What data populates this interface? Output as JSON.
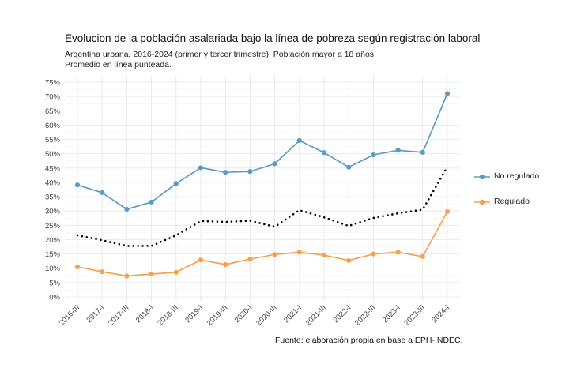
{
  "title": "Evolucion de la población asalariada bajo la línea de pobreza según registración laboral",
  "subtitle": "Argentina urbana, 2016-2024 (primer y tercer trimestre). Población mayor a 18 años.\nPromedio en línea punteada.",
  "caption": "Fuente: elaboración propia en base a EPH-INDEC.",
  "chart_data": {
    "type": "line",
    "title": "Evolucion de la población asalariada bajo la línea de pobreza según registración laboral",
    "subtitle": "Argentina urbana, 2016-2024 (primer y tercer trimestre). Población mayor a 18 años. Promedio en línea punteada.",
    "xlabel": "",
    "ylabel": "",
    "categories": [
      "2016-III",
      "2017-I",
      "2017-III",
      "2018-I",
      "2018-III",
      "2019-I",
      "2019-III",
      "2020-I",
      "2020-III",
      "2021-I",
      "2021-III",
      "2022-I",
      "2022-III",
      "2023-I",
      "2023-III",
      "2024-I"
    ],
    "ylim": [
      0,
      75
    ],
    "yticks": [
      0,
      5,
      10,
      15,
      20,
      25,
      30,
      35,
      40,
      45,
      50,
      55,
      60,
      65,
      70,
      75
    ],
    "ytick_labels": [
      "0%",
      "5%",
      "10%",
      "15%",
      "20%",
      "25%",
      "30%",
      "35%",
      "40%",
      "45%",
      "50%",
      "55%",
      "60%",
      "65%",
      "70%",
      "75%"
    ],
    "grid": true,
    "legend_position": "right",
    "series": [
      {
        "name": "No regulado",
        "color": "#5b9bc4",
        "values": [
          39.1,
          36.4,
          30.6,
          33.1,
          39.6,
          45.1,
          43.5,
          43.8,
          46.5,
          54.6,
          50.4,
          45.3,
          49.6,
          51.2,
          50.5,
          71.0
        ]
      },
      {
        "name": "Regulado",
        "color": "#f4a24f",
        "values": [
          10.5,
          8.8,
          7.3,
          8.0,
          8.6,
          12.9,
          11.3,
          13.2,
          14.8,
          15.6,
          14.6,
          12.7,
          15.0,
          15.6,
          14.1,
          29.8
        ]
      },
      {
        "name": "Promedio",
        "color": "#000000",
        "style": "dotted",
        "values": [
          21.5,
          19.8,
          17.8,
          17.8,
          21.5,
          26.5,
          26.2,
          26.6,
          24.5,
          30.3,
          27.8,
          24.8,
          27.6,
          29.2,
          30.5,
          45.5
        ]
      }
    ]
  }
}
